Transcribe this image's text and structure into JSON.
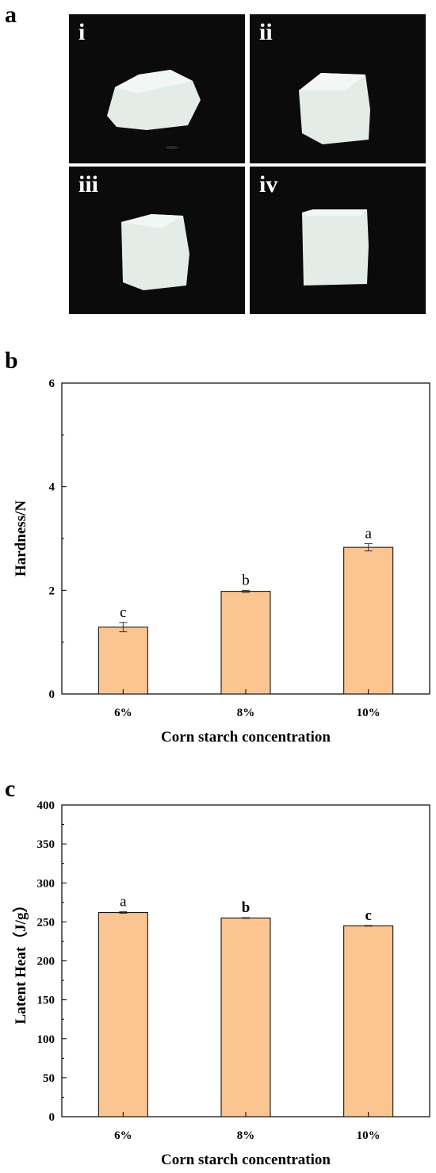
{
  "panel_labels": {
    "a": "a",
    "b": "b",
    "c": "c"
  },
  "photos": [
    {
      "label": "i"
    },
    {
      "label": "ii"
    },
    {
      "label": "iii"
    },
    {
      "label": "iv"
    }
  ],
  "colors": {
    "bar_fill": "#fbc592",
    "bar_stroke": "#000000",
    "photo_bg": "#0b0b0b",
    "gel": "#e4ece8"
  },
  "chart_data": [
    {
      "type": "bar",
      "categories": [
        "6%",
        "8%",
        "10%"
      ],
      "values": [
        1.29,
        1.98,
        2.83
      ],
      "errors": [
        0.09,
        0.02,
        0.07
      ],
      "significance": [
        "c",
        "b",
        "a"
      ],
      "xlabel": "Corn starch concentration",
      "ylabel": "Hardness/N",
      "ylim": [
        0,
        6
      ],
      "yticks": [
        "0",
        "2",
        "4",
        "6"
      ],
      "grid": false
    },
    {
      "type": "bar",
      "categories": [
        "6%",
        "8%",
        "10%"
      ],
      "values": [
        262,
        255,
        245
      ],
      "errors": [
        1,
        0.5,
        0.5
      ],
      "significance": [
        "a",
        "b",
        "c"
      ],
      "xlabel": "Corn starch concentration",
      "ylabel": "Latent Heat（J/g）",
      "ylim": [
        0,
        400
      ],
      "yticks": [
        "0",
        "50",
        "100",
        "150",
        "200",
        "250",
        "300",
        "350",
        "400"
      ],
      "grid": false
    }
  ]
}
